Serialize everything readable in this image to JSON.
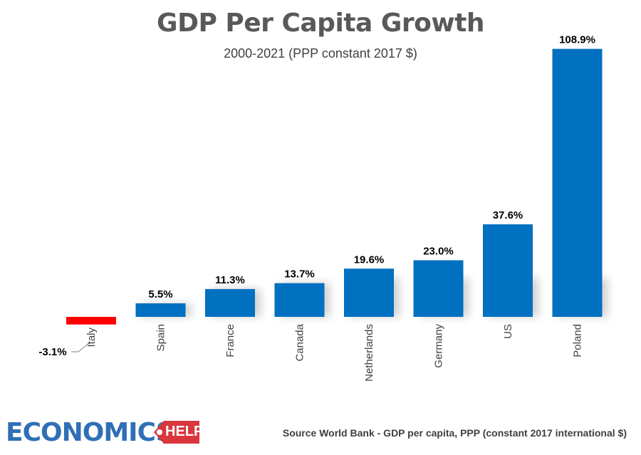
{
  "chart_data": {
    "type": "bar",
    "title": "GDP Per Capita Growth",
    "subtitle": "2000-2021 (PPP constant 2017 $)",
    "categories": [
      "Italy",
      "Spain",
      "France",
      "Canada",
      "Netherlands",
      "Germany",
      "US",
      "Poland"
    ],
    "values": [
      -3.1,
      5.5,
      11.3,
      13.7,
      19.6,
      23.0,
      37.6,
      108.9
    ],
    "value_labels": [
      "-3.1%",
      "5.5%",
      "11.3%",
      "13.7%",
      "19.6%",
      "23.0%",
      "37.6%",
      "108.9%"
    ],
    "colors": [
      "#ff0000",
      "#0070c0",
      "#0070c0",
      "#0070c0",
      "#0070c0",
      "#0070c0",
      "#0070c0",
      "#0070c0"
    ],
    "ylim": [
      -3.1,
      108.9
    ],
    "xlabel": "",
    "ylabel": ""
  },
  "footer": {
    "source": "Source World Bank - GDP per capita, PPP (constant 2017 international $)"
  },
  "logo": {
    "main": "ECONOMICS",
    "tag": "HELP",
    "colors": {
      "main": "#2f6fb6",
      "tag": "#d9363e"
    }
  }
}
